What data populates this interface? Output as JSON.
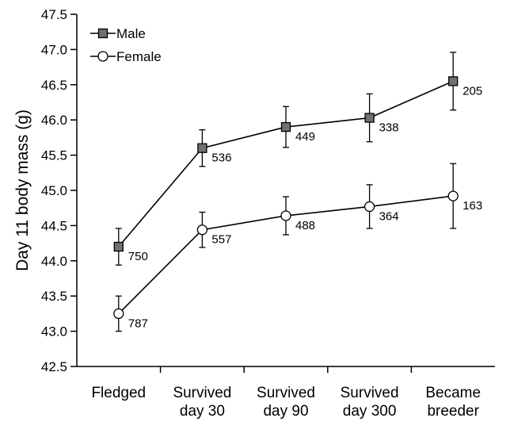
{
  "chart_data": {
    "type": "line",
    "title": "",
    "xlabel": "",
    "ylabel": "Day 11 body mass (g)",
    "ylim": [
      42.5,
      47.5
    ],
    "yticks": [
      "42.5",
      "43.0",
      "43.5",
      "44.0",
      "44.5",
      "45.0",
      "45.5",
      "46.0",
      "46.5",
      "47.0",
      "47.5"
    ],
    "categories": [
      [
        "Fledged"
      ],
      [
        "Survived",
        "day 30"
      ],
      [
        "Survived",
        "day 90"
      ],
      [
        "Survived",
        "day 300"
      ],
      [
        "Became",
        "breeder"
      ]
    ],
    "legend_position": "top-left",
    "grid": false,
    "series": [
      {
        "name": "Male",
        "marker": "square",
        "color": "#707070",
        "values": [
          44.2,
          45.6,
          45.9,
          46.03,
          46.55
        ],
        "err": [
          0.26,
          0.26,
          0.29,
          0.34,
          0.41
        ],
        "n": [
          "750",
          "536",
          "449",
          "338",
          "205"
        ]
      },
      {
        "name": "Female",
        "marker": "circle",
        "color": "#ffffff",
        "values": [
          43.25,
          44.44,
          44.64,
          44.77,
          44.92
        ],
        "err": [
          0.25,
          0.25,
          0.27,
          0.31,
          0.46
        ],
        "n": [
          "787",
          "557",
          "488",
          "364",
          "163"
        ]
      }
    ]
  }
}
